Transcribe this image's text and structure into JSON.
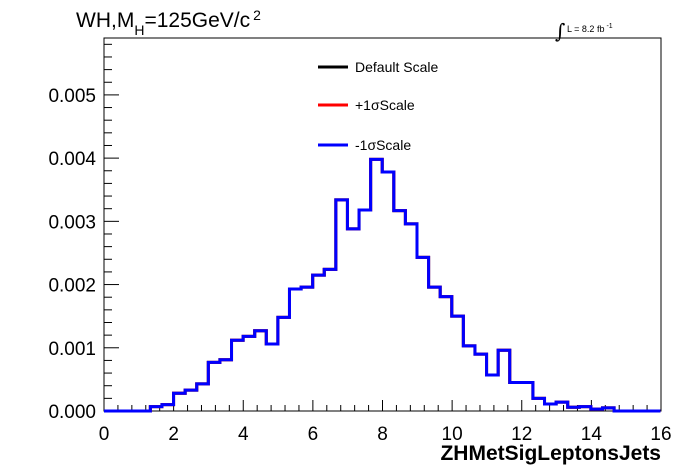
{
  "chart_data": {
    "type": "step-histogram",
    "title_main": "WH,M",
    "title_sub": "H",
    "title_rest": "=125GeV/c",
    "title_sup": "2",
    "lumi_integral": "∫",
    "lumi_text": "L = 8.2 fb",
    "lumi_sup": "-1",
    "xlabel": "ZHMetSigLeptonsJets",
    "xlim": [
      0,
      16
    ],
    "ylim": [
      0,
      0.0059
    ],
    "x_ticks": [
      "0",
      "2",
      "4",
      "6",
      "8",
      "10",
      "12",
      "14",
      "16"
    ],
    "y_ticks": [
      "0.000",
      "0.001",
      "0.002",
      "0.003",
      "0.004",
      "0.005"
    ],
    "bin_width": 0.333,
    "bins_start": 0,
    "series": [
      {
        "name": "Default Scale",
        "color": "#000000"
      },
      {
        "name": "+1σScale",
        "color": "#ff0000"
      },
      {
        "name": "-1σScale",
        "color": "#0000ff"
      }
    ],
    "values": [
      0,
      0,
      0,
      0,
      7e-05,
      0.0001,
      0.00028,
      0.00033,
      0.00043,
      0.00077,
      0.00081,
      0.00112,
      0.00118,
      0.00127,
      0.00106,
      0.00148,
      0.00193,
      0.00196,
      0.00215,
      0.00224,
      0.00334,
      0.00288,
      0.00318,
      0.00398,
      0.00378,
      0.00317,
      0.00296,
      0.00243,
      0.00196,
      0.00181,
      0.0015,
      0.00103,
      0.0009,
      0.00057,
      0.00096,
      0.00045,
      0.00045,
      0.0002,
      0.00011,
      0.00014,
      6e-05,
      7e-05,
      3e-05,
      5e-05,
      0.0,
      0,
      0,
      0
    ]
  }
}
